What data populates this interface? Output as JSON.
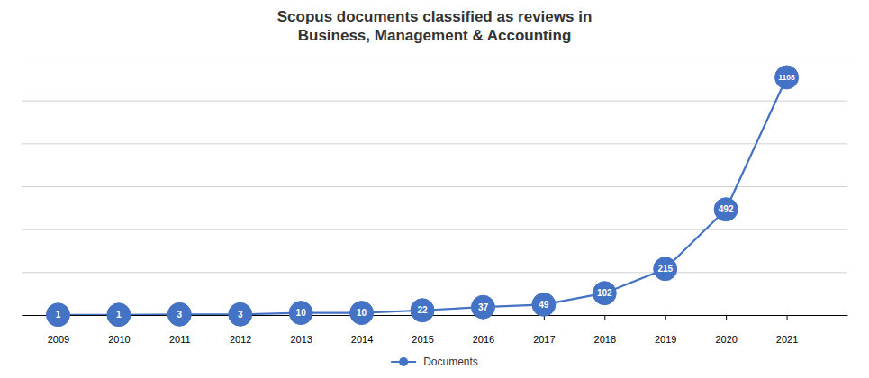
{
  "chart_data": {
    "type": "line",
    "title": "Scopus documents classified as reviews in\nBusiness, Management & Accounting",
    "x": [
      2009,
      2010,
      2011,
      2012,
      2013,
      2014,
      2015,
      2016,
      2017,
      2018,
      2019,
      2020,
      2021
    ],
    "xlim": [
      2008.4,
      2022.0
    ],
    "xticks": [
      2009,
      2010,
      2011,
      2012,
      2013,
      2014,
      2015,
      2016,
      2017,
      2018,
      2019,
      2020,
      2021
    ],
    "ylim": [
      0,
      1200
    ],
    "yticks": [
      0,
      200,
      400,
      600,
      800,
      1000,
      1200
    ],
    "grid": true,
    "tick_labels": "x",
    "data_labels": true,
    "legend": "bottom",
    "marker": "circle",
    "series": [
      {
        "name": "Documents",
        "color": "#4472C4",
        "values": [
          1,
          1,
          3,
          3,
          10,
          10,
          22,
          37,
          49,
          102,
          215,
          492,
          1108
        ]
      }
    ]
  }
}
